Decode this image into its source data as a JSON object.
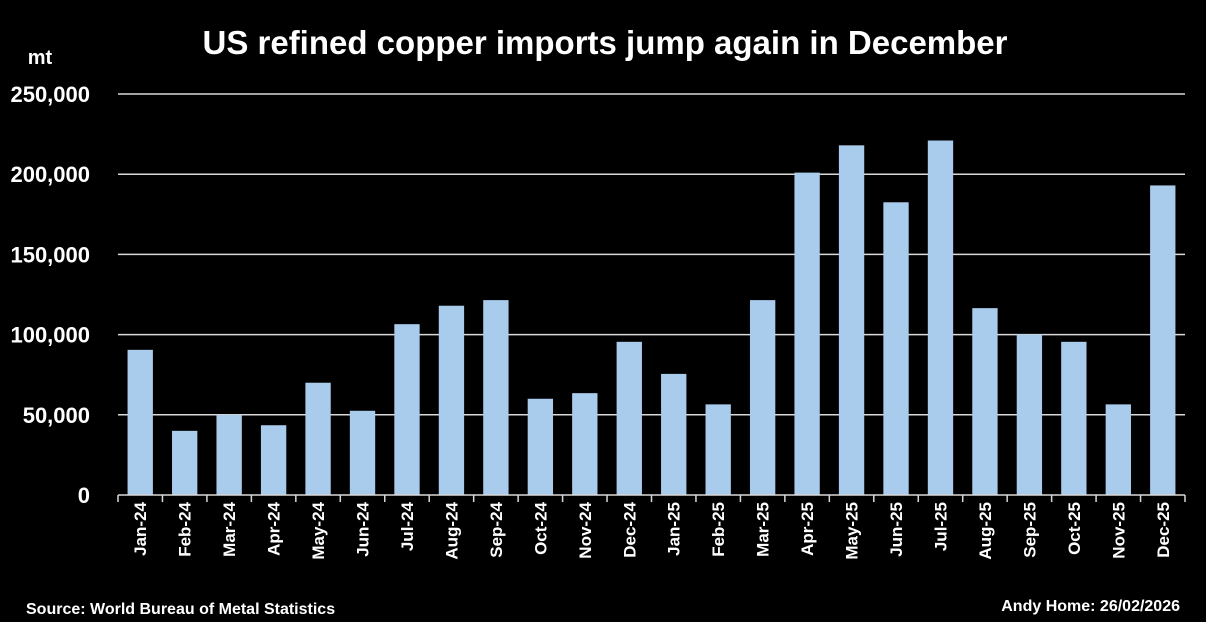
{
  "chart_data": {
    "type": "bar",
    "title": "US refined copper imports jump again in December",
    "ylabel": "mt",
    "xlabel": "",
    "ylim": [
      0,
      250000
    ],
    "yticks": [
      0,
      50000,
      100000,
      150000,
      200000,
      250000
    ],
    "ytick_labels": [
      "0",
      "50,000",
      "100,000",
      "150,000",
      "200,000",
      "250,000"
    ],
    "grid": true,
    "categories": [
      "Jan-24",
      "Feb-24",
      "Mar-24",
      "Apr-24",
      "May-24",
      "Jun-24",
      "Jul-24",
      "Aug-24",
      "Sep-24",
      "Oct-24",
      "Nov-24",
      "Dec-24",
      "Jan-25",
      "Feb-25",
      "Mar-25",
      "Apr-25",
      "May-25",
      "Jun-25",
      "Jul-25",
      "Aug-25",
      "Sep-25",
      "Oct-25",
      "Nov-25",
      "Dec-25"
    ],
    "values": [
      90500,
      40000,
      50000,
      43500,
      70000,
      52500,
      106500,
      118000,
      121500,
      60000,
      63500,
      95500,
      75500,
      56500,
      121500,
      201000,
      218000,
      182500,
      221000,
      116500,
      100000,
      95500,
      56500,
      193000
    ],
    "bar_color": "#a9cbec",
    "background": "#000000",
    "source": "Source: World Bureau of Metal Statistics",
    "credit": "Andy Home: 26/02/2026"
  }
}
